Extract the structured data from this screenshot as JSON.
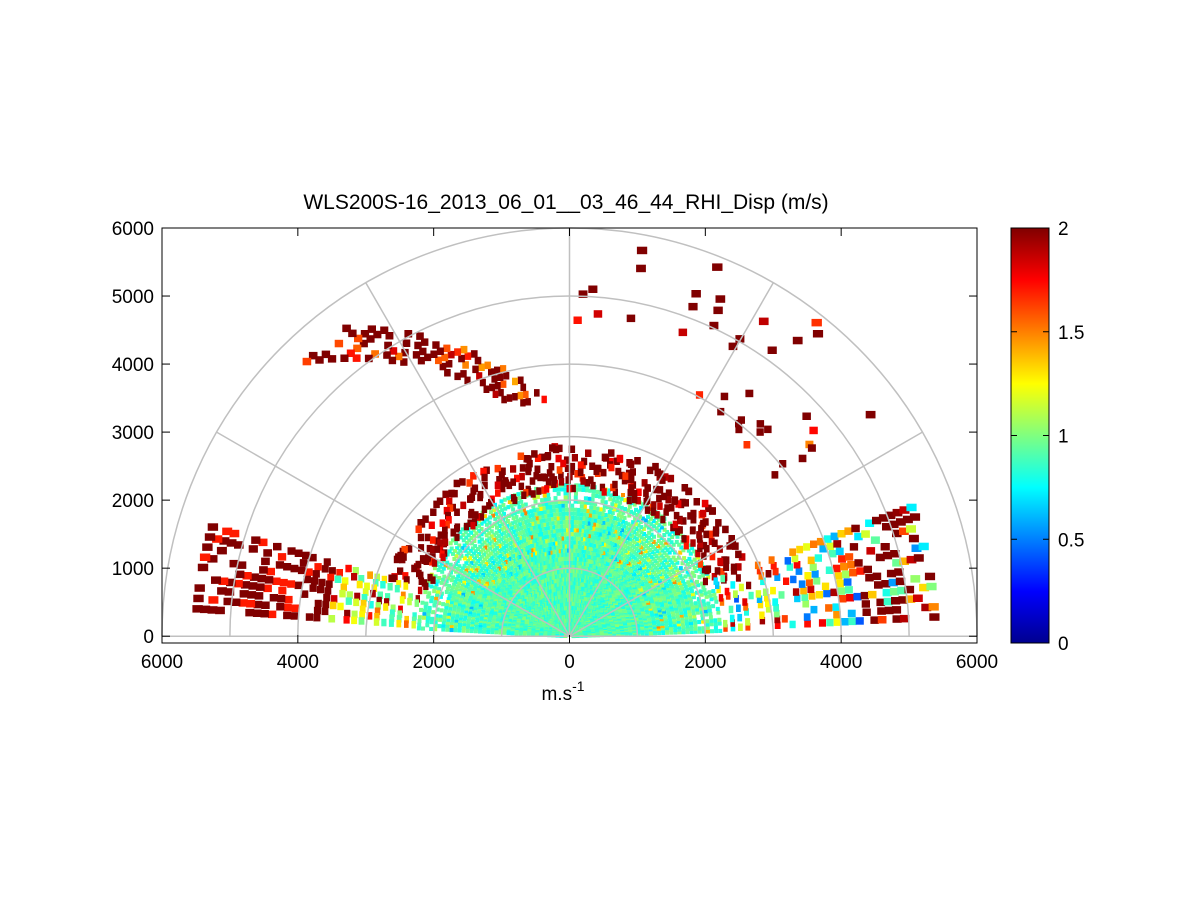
{
  "chart_data": {
    "type": "heatmap",
    "subtype": "polar-rhi-scan",
    "title": "WLS200S-16_2013_06_01__03_46_44_RHI_Disp (m/s)",
    "xlabel": "m.s",
    "xlabel_superscript": "-1",
    "ylabel": "",
    "xlim": [
      -6000,
      6000
    ],
    "ylim": [
      -100,
      6000
    ],
    "xticks": [
      -6000,
      -4000,
      -2000,
      0,
      2000,
      4000,
      6000
    ],
    "xtick_labels": [
      "6000",
      "4000",
      "2000",
      "0",
      "2000",
      "4000",
      "6000"
    ],
    "yticks": [
      0,
      1000,
      2000,
      3000,
      4000,
      5000,
      6000
    ],
    "ytick_labels": [
      "0",
      "1000",
      "2000",
      "3000",
      "4000",
      "5000",
      "6000"
    ],
    "polar_grid": {
      "range_rings_m": [
        1000,
        2000,
        3000,
        4000,
        5000,
        6000
      ],
      "spoke_angles_deg": [
        0,
        30,
        60,
        90,
        120,
        150,
        180
      ]
    },
    "colorbar": {
      "colormap": "jet",
      "min": 0,
      "max": 2,
      "ticks": [
        0,
        0.5,
        1,
        1.5,
        2
      ],
      "tick_labels": [
        "0",
        "0.5",
        "1",
        "1.5",
        "2"
      ]
    },
    "regions": [
      {
        "name": "near-field dense cone",
        "range_m": [
          0,
          2300
        ],
        "elevation_deg": [
          2,
          178
        ],
        "value_mean": 0.95
      },
      {
        "name": "outer edge of cone",
        "range_m": [
          2000,
          2800
        ],
        "elevation_deg": [
          20,
          160
        ],
        "value_mean": 1.9
      },
      {
        "name": "left low-elevation band",
        "range_m": [
          2500,
          5500
        ],
        "elevation_deg": [
          165,
          175
        ],
        "value_mean": 1.8
      },
      {
        "name": "right low-elevation band",
        "range_m": [
          2500,
          5400
        ],
        "elevation_deg": [
          3,
          20
        ],
        "value_mean": 1.2
      },
      {
        "name": "upper-left layer",
        "range_m": [
          3500,
          5500
        ],
        "elevation_deg": [
          95,
          130
        ],
        "value_mean": 1.9
      },
      {
        "name": "upper-right sparse returns",
        "range_m": [
          4000,
          6000
        ],
        "elevation_deg": [
          40,
          88
        ],
        "value_mean": 1.9
      }
    ]
  }
}
